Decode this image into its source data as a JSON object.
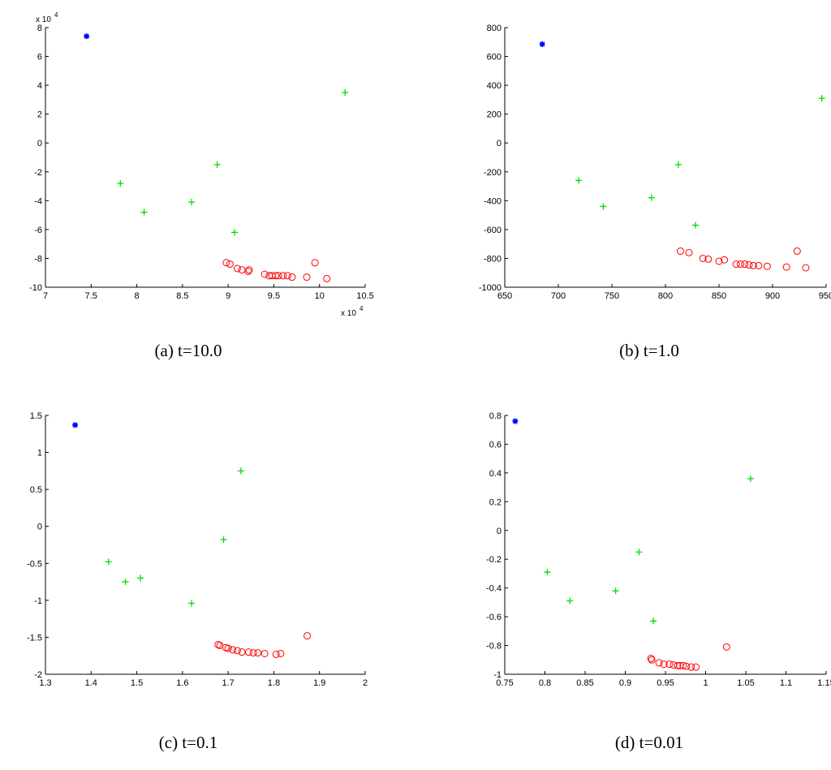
{
  "colors": {
    "star": "#0000ff",
    "plus": "#00dd00",
    "circle": "#ff0000",
    "axis": "#000000"
  },
  "chart_data": [
    {
      "type": "scatter",
      "caption": "(a) t=10.0",
      "xlim": [
        7,
        10.5
      ],
      "ylim": [
        -10,
        8
      ],
      "xticks": [
        "7",
        "7.5",
        "8",
        "8.5",
        "9",
        "9.5",
        "10",
        "10.5"
      ],
      "yticks": [
        "-10",
        "-8",
        "-6",
        "-4",
        "-2",
        "0",
        "2",
        "4",
        "6",
        "8"
      ],
      "x_multiplier_label": "x 10",
      "x_multiplier_exp": "4",
      "y_multiplier_label": "x 10",
      "y_multiplier_exp": "4",
      "series": [
        {
          "marker": "star",
          "points": [
            [
              7.45,
              7.4
            ]
          ]
        },
        {
          "marker": "plus",
          "points": [
            [
              7.82,
              -2.8
            ],
            [
              8.08,
              -4.8
            ],
            [
              8.6,
              -4.1
            ],
            [
              8.88,
              -1.5
            ],
            [
              9.07,
              -6.2
            ],
            [
              10.28,
              3.5
            ]
          ]
        },
        {
          "marker": "circle",
          "points": [
            [
              8.98,
              -8.3
            ],
            [
              9.02,
              -8.4
            ],
            [
              9.1,
              -8.7
            ],
            [
              9.15,
              -8.8
            ],
            [
              9.22,
              -8.9
            ],
            [
              9.23,
              -8.8
            ],
            [
              9.4,
              -9.1
            ],
            [
              9.45,
              -9.2
            ],
            [
              9.48,
              -9.2
            ],
            [
              9.52,
              -9.2
            ],
            [
              9.55,
              -9.2
            ],
            [
              9.6,
              -9.2
            ],
            [
              9.65,
              -9.2
            ],
            [
              9.7,
              -9.3
            ],
            [
              9.86,
              -9.3
            ],
            [
              9.95,
              -8.3
            ],
            [
              10.08,
              -9.4
            ]
          ]
        }
      ]
    },
    {
      "type": "scatter",
      "caption": "(b) t=1.0",
      "xlim": [
        650,
        950
      ],
      "ylim": [
        -1000,
        800
      ],
      "xticks": [
        "650",
        "700",
        "750",
        "800",
        "850",
        "900",
        "950"
      ],
      "yticks": [
        "-1000",
        "-800",
        "-600",
        "-400",
        "-200",
        "0",
        "200",
        "400",
        "600",
        "800"
      ],
      "series": [
        {
          "marker": "star",
          "points": [
            [
              685,
              685
            ]
          ]
        },
        {
          "marker": "plus",
          "points": [
            [
              719,
              -260
            ],
            [
              742,
              -440
            ],
            [
              787,
              -380
            ],
            [
              812,
              -150
            ],
            [
              828,
              -570
            ],
            [
              946,
              310
            ]
          ]
        },
        {
          "marker": "circle",
          "points": [
            [
              814,
              -750
            ],
            [
              822,
              -760
            ],
            [
              835,
              -800
            ],
            [
              840,
              -805
            ],
            [
              850,
              -820
            ],
            [
              855,
              -810
            ],
            [
              866,
              -840
            ],
            [
              870,
              -840
            ],
            [
              874,
              -840
            ],
            [
              878,
              -845
            ],
            [
              882,
              -850
            ],
            [
              887,
              -850
            ],
            [
              895,
              -855
            ],
            [
              913,
              -860
            ],
            [
              923,
              -750
            ],
            [
              931,
              -865
            ]
          ]
        }
      ]
    },
    {
      "type": "scatter",
      "caption": "(c) t=0.1",
      "xlim": [
        1.3,
        2
      ],
      "ylim": [
        -2,
        1.5
      ],
      "xticks": [
        "1.3",
        "1.4",
        "1.5",
        "1.6",
        "1.7",
        "1.8",
        "1.9",
        "2"
      ],
      "yticks": [
        "-2",
        "-1.5",
        "-1",
        "-0.5",
        "0",
        "0.5",
        "1",
        "1.5"
      ],
      "series": [
        {
          "marker": "star",
          "points": [
            [
              1.365,
              1.37
            ]
          ]
        },
        {
          "marker": "plus",
          "points": [
            [
              1.438,
              -0.48
            ],
            [
              1.475,
              -0.75
            ],
            [
              1.508,
              -0.7
            ],
            [
              1.62,
              -1.04
            ],
            [
              1.69,
              -0.18
            ],
            [
              1.728,
              0.75
            ]
          ]
        },
        {
          "marker": "circle",
          "points": [
            [
              1.678,
              -1.6
            ],
            [
              1.682,
              -1.61
            ],
            [
              1.695,
              -1.64
            ],
            [
              1.7,
              -1.65
            ],
            [
              1.71,
              -1.67
            ],
            [
              1.72,
              -1.68
            ],
            [
              1.73,
              -1.7
            ],
            [
              1.745,
              -1.7
            ],
            [
              1.755,
              -1.71
            ],
            [
              1.765,
              -1.71
            ],
            [
              1.78,
              -1.72
            ],
            [
              1.805,
              -1.73
            ],
            [
              1.815,
              -1.72
            ],
            [
              1.873,
              -1.48
            ]
          ]
        }
      ]
    },
    {
      "type": "scatter",
      "caption": "(d) t=0.01",
      "xlim": [
        0.75,
        1.15
      ],
      "ylim": [
        -1,
        0.8
      ],
      "xticks": [
        "0.75",
        "0.8",
        "0.85",
        "0.9",
        "0.95",
        "1",
        "1.05",
        "1.1",
        "1.15"
      ],
      "yticks": [
        "-1",
        "-0.8",
        "-0.6",
        "-0.4",
        "-0.2",
        "0",
        "0.2",
        "0.4",
        "0.6",
        "0.8"
      ],
      "series": [
        {
          "marker": "star",
          "points": [
            [
              0.763,
              0.76
            ]
          ]
        },
        {
          "marker": "plus",
          "points": [
            [
              0.803,
              -0.29
            ],
            [
              0.831,
              -0.49
            ],
            [
              0.888,
              -0.42
            ],
            [
              0.917,
              -0.15
            ],
            [
              0.935,
              -0.63
            ],
            [
              1.056,
              0.36
            ]
          ]
        },
        {
          "marker": "circle",
          "points": [
            [
              0.932,
              -0.89
            ],
            [
              0.933,
              -0.9
            ],
            [
              0.942,
              -0.92
            ],
            [
              0.948,
              -0.93
            ],
            [
              0.955,
              -0.93
            ],
            [
              0.96,
              -0.935
            ],
            [
              0.965,
              -0.94
            ],
            [
              0.968,
              -0.94
            ],
            [
              0.972,
              -0.94
            ],
            [
              0.976,
              -0.945
            ],
            [
              0.982,
              -0.95
            ],
            [
              0.988,
              -0.95
            ],
            [
              1.026,
              -0.81
            ]
          ]
        }
      ]
    }
  ]
}
